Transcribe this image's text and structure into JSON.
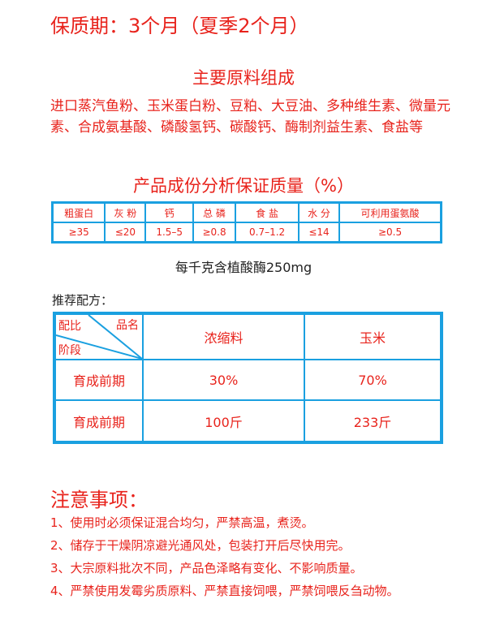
{
  "shelf_life": "保质期：3个月（夏季2个月）",
  "ingredients": {
    "title": "主要原料组成",
    "text": "进口蒸汽鱼粉、玉米蛋白粉、豆粕、大豆油、多种维生素、微量元素、合成氨基酸、磷酸氢钙、碳酸钙、酶制剂益生素、食盐等"
  },
  "analysis": {
    "title": "产品成份分析保证质量（%）",
    "headers": [
      "粗蛋白",
      "灰 粉",
      "钙",
      "总 磷",
      "食 盐",
      "水 分",
      "可利用蛋氨酸"
    ],
    "values": [
      "≥35",
      "≤20",
      "1.5–5",
      "≥0.8",
      "0.7–1.2",
      "≤14",
      "≥0.5"
    ],
    "phytase": "每千克含植酸酶250mg"
  },
  "recipe": {
    "title": "推荐配方：",
    "corner": {
      "top_left": "配比",
      "top_right": "品名",
      "bottom": "阶段"
    },
    "headers": [
      "浓缩料",
      "玉米"
    ],
    "rows": [
      {
        "stage": "育成前期",
        "values": [
          "30%",
          "70%"
        ]
      },
      {
        "stage": "育成前期",
        "values": [
          "100斤",
          "233斤"
        ]
      }
    ]
  },
  "notice": {
    "title": "注意事项：",
    "items": [
      "1、使用时必须保证混合均匀，严禁高温，煮烫。",
      "2、储存于干燥阴凉避光通风处，包装打开后尽快用完。",
      "3、大宗原料批次不同，产品色泽略有变化、不影响质量。",
      "4、严禁使用发霉劣质原料、严禁直接饲喂，严禁饲喂反刍动物。"
    ]
  },
  "colors": {
    "text": "#e8231c",
    "border": "#1aa0e0"
  }
}
